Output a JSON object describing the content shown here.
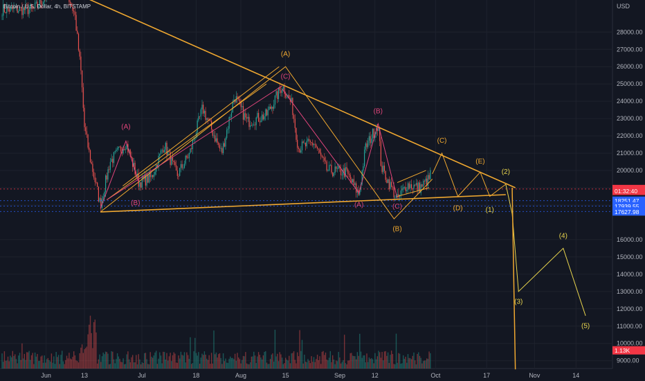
{
  "header": {
    "symbol": "Bitcoin / U.S. Dollar, 4h, BITSTAMP"
  },
  "colors": {
    "bg": "#131722",
    "grid": "#1e222d",
    "axis_text": "#b2b5be",
    "up": "#26a69a",
    "down": "#ef5350",
    "orange": "#f0a830",
    "yellow": "#e8d44d",
    "pink": "#e0457b",
    "blue_dash": "#2962ff",
    "current_price_bg": "#f23645",
    "volume_bg": "#f23645"
  },
  "chart_data": {
    "type": "candlestick",
    "title": "Bitcoin / U.S. Dollar, 4h, BITSTAMP",
    "currency": "USD",
    "y_ticks": [
      9000,
      10000,
      11000,
      12000,
      13000,
      14000,
      15000,
      16000,
      18000,
      19000,
      20000,
      21000,
      22000,
      23000,
      24000,
      25000,
      26000,
      27000,
      28000
    ],
    "x_ticks": [
      {
        "label": "Jun",
        "date": "2022-06-01"
      },
      {
        "label": "13",
        "date": "2022-06-13"
      },
      {
        "label": "Jul",
        "date": "2022-07-01"
      },
      {
        "label": "18",
        "date": "2022-07-18"
      },
      {
        "label": "Aug",
        "date": "2022-08-01"
      },
      {
        "label": "15",
        "date": "2022-08-15"
      },
      {
        "label": "Sep",
        "date": "2022-09-01"
      },
      {
        "label": "12",
        "date": "2022-09-12"
      },
      {
        "label": "Oct",
        "date": "2022-10-01"
      },
      {
        "label": "17",
        "date": "2022-10-17"
      },
      {
        "label": "Nov",
        "date": "2022-11-01"
      },
      {
        "label": "14",
        "date": "2022-11-14"
      }
    ],
    "price_path": [
      [
        "2022-05-28",
        29300
      ],
      [
        "2022-06-06",
        31000
      ],
      [
        "2022-06-10",
        29000
      ],
      [
        "2022-06-12",
        25500
      ],
      [
        "2022-06-13",
        22500
      ],
      [
        "2022-06-15",
        20500
      ],
      [
        "2022-06-18",
        18000
      ],
      [
        "2022-06-21",
        20500
      ],
      [
        "2022-06-26",
        21600
      ],
      [
        "2022-06-30",
        19300
      ],
      [
        "2022-07-04",
        19600
      ],
      [
        "2022-07-08",
        21500
      ],
      [
        "2022-07-12",
        19700
      ],
      [
        "2022-07-16",
        21000
      ],
      [
        "2022-07-20",
        23600
      ],
      [
        "2022-07-26",
        21000
      ],
      [
        "2022-07-30",
        24300
      ],
      [
        "2022-08-03",
        22800
      ],
      [
        "2022-08-09",
        23200
      ],
      [
        "2022-08-14",
        24900
      ],
      [
        "2022-08-17",
        23800
      ],
      [
        "2022-08-19",
        21300
      ],
      [
        "2022-08-24",
        21600
      ],
      [
        "2022-08-28",
        20000
      ],
      [
        "2022-09-03",
        19900
      ],
      [
        "2022-09-07",
        18600
      ],
      [
        "2022-09-09",
        21300
      ],
      [
        "2022-09-13",
        22700
      ],
      [
        "2022-09-14",
        20200
      ],
      [
        "2022-09-19",
        18300
      ],
      [
        "2022-09-22",
        19200
      ],
      [
        "2022-09-26",
        19000
      ],
      [
        "2022-09-29",
        19500
      ],
      [
        "2022-09-30",
        20300
      ]
    ],
    "price_labels": [
      {
        "text": "18926.00",
        "price": 18926,
        "bg": "#f23645"
      },
      {
        "text": "01:32:40",
        "price": 18820,
        "bg": "#f23645"
      },
      {
        "text": "18251.47",
        "price": 18251,
        "bg": "#2962ff"
      },
      {
        "text": "17939.55",
        "price": 17940,
        "bg": "#2962ff"
      },
      {
        "text": "17627.98",
        "price": 17628,
        "bg": "#2962ff"
      },
      {
        "text": "1.13K",
        "price": 9600,
        "bg": "#f23645"
      }
    ],
    "dashed_levels": [
      18926,
      18251,
      17940,
      17628
    ],
    "annotations": {
      "trendlines": [
        {
          "name": "upper-trendline",
          "color": "orange",
          "points": [
            [
              "2022-05-27",
              31400
            ],
            [
              "2022-10-26",
              19000
            ]
          ]
        },
        {
          "name": "lower-trendline",
          "color": "orange",
          "points": [
            [
              "2022-06-18",
              17600
            ],
            [
              "2022-10-23",
              18600
            ]
          ]
        }
      ],
      "paths": [
        {
          "name": "orange-abc-path",
          "color": "orange",
          "width": 1,
          "points": [
            [
              "2022-06-18",
              17600
            ],
            [
              "2022-08-15",
              26000
            ],
            [
              "2022-09-18",
              17200
            ],
            [
              "2022-09-30",
              19500
            ]
          ]
        },
        {
          "name": "orange-upper-channel",
          "color": "orange",
          "width": 1,
          "points": [
            [
              "2022-06-20",
              18300
            ],
            [
              "2022-08-09",
              25000
            ]
          ]
        },
        {
          "name": "orange-lower-channel",
          "color": "orange",
          "width": 1,
          "points": [
            [
              "2022-06-25",
              19100
            ],
            [
              "2022-08-13",
              26000
            ]
          ]
        },
        {
          "name": "pink-lower-wave",
          "color": "pink",
          "width": 1,
          "points": [
            [
              "2022-06-20",
              18300
            ],
            [
              "2022-08-14",
              24900
            ]
          ]
        },
        {
          "name": "pink-abc-path",
          "color": "pink",
          "width": 1,
          "points": [
            [
              "2022-06-18",
              17800
            ],
            [
              "2022-06-26",
              21700
            ],
            [
              "2022-06-30",
              19300
            ]
          ]
        },
        {
          "name": "pink-decline-path",
          "color": "pink",
          "width": 1,
          "points": [
            [
              "2022-08-14",
              24700
            ],
            [
              "2022-09-07",
              18700
            ],
            [
              "2022-09-13",
              22700
            ],
            [
              "2022-09-19",
              18400
            ]
          ]
        },
        {
          "name": "projection-path-triangle",
          "color": "orange",
          "width": 1,
          "points": [
            [
              "2022-09-30",
              19800
            ],
            [
              "2022-10-03",
              21000
            ],
            [
              "2022-10-08",
              18500
            ],
            [
              "2022-10-15",
              19900
            ],
            [
              "2022-10-18",
              18500
            ],
            [
              "2022-10-23",
              19200
            ]
          ]
        },
        {
          "name": "wedge-upper",
          "color": "orange",
          "width": 1,
          "points": [
            [
              "2022-09-19",
              19300
            ],
            [
              "2022-09-28",
              20000
            ]
          ]
        },
        {
          "name": "wedge-lower",
          "color": "orange",
          "width": 1,
          "points": [
            [
              "2022-09-19",
              18500
            ],
            [
              "2022-09-29",
              19000
            ]
          ]
        },
        {
          "name": "impulse-projection",
          "color": "yellow",
          "width": 1,
          "points": [
            [
              "2022-10-23",
              19200
            ],
            [
              "2022-10-25",
              17500
            ],
            [
              "2022-10-27",
              13000
            ],
            [
              "2022-11-10",
              15500
            ],
            [
              "2022-11-17",
              11600
            ]
          ]
        },
        {
          "name": "crash-line",
          "color": "orange",
          "width": 1.5,
          "points": [
            [
              "2022-10-25",
              19000
            ],
            [
              "2022-10-26",
              8500
            ]
          ]
        }
      ],
      "labels": [
        {
          "text": "(A)",
          "color": "orange",
          "point": [
            "2022-08-15",
            26600
          ]
        },
        {
          "text": "(C)",
          "color": "pink",
          "point": [
            "2022-08-15",
            25300
          ]
        },
        {
          "text": "(A)",
          "color": "pink",
          "point": [
            "2022-06-26",
            22400
          ]
        },
        {
          "text": "(B)",
          "color": "pink",
          "point": [
            "2022-06-29",
            18000
          ]
        },
        {
          "text": "(B)",
          "color": "pink",
          "point": [
            "2022-09-13",
            23300
          ]
        },
        {
          "text": "(A)",
          "color": "pink",
          "point": [
            "2022-09-07",
            17900
          ]
        },
        {
          "text": "(C)",
          "color": "pink",
          "point": [
            "2022-09-19",
            17800
          ]
        },
        {
          "text": "(B)",
          "color": "orange",
          "point": [
            "2022-09-19",
            16500
          ]
        },
        {
          "text": "(C)",
          "color": "orange",
          "point": [
            "2022-10-03",
            21600
          ]
        },
        {
          "text": "(D)",
          "color": "orange",
          "point": [
            "2022-10-08",
            17700
          ]
        },
        {
          "text": "(E)",
          "color": "orange",
          "point": [
            "2022-10-15",
            20400
          ]
        },
        {
          "text": "(1)",
          "color": "yellow",
          "point": [
            "2022-10-18",
            17600
          ]
        },
        {
          "text": "(2)",
          "color": "yellow",
          "point": [
            "2022-10-23",
            19800
          ]
        },
        {
          "text": "(3)",
          "color": "yellow",
          "point": [
            "2022-10-27",
            12300
          ]
        },
        {
          "text": "(4)",
          "color": "yellow",
          "point": [
            "2022-11-10",
            16100
          ]
        },
        {
          "text": "(5)",
          "color": "yellow",
          "point": [
            "2022-11-17",
            10900
          ]
        }
      ]
    }
  }
}
